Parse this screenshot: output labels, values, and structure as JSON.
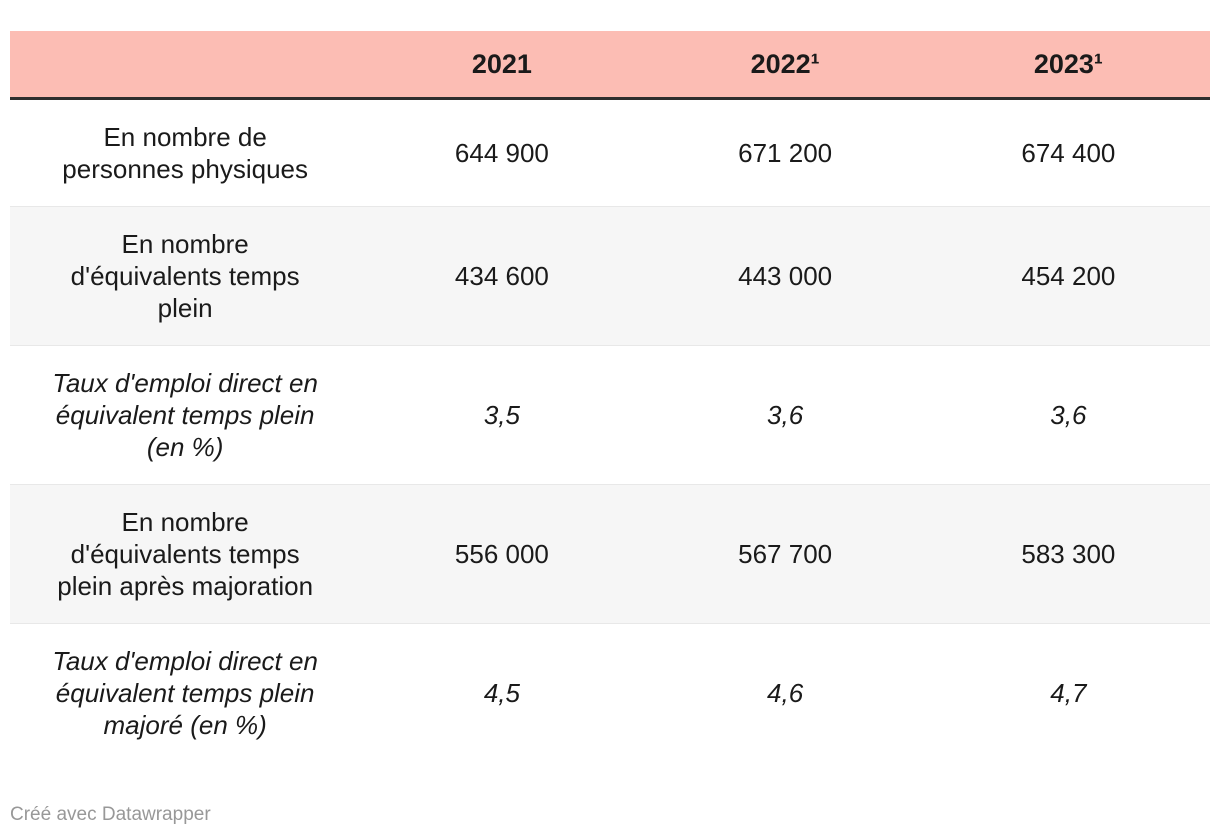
{
  "chart_data": {
    "type": "table",
    "columns": [
      "",
      "2021",
      "2022¹",
      "2023¹"
    ],
    "rows": [
      {
        "label": "En nombre de personnes physiques",
        "values": [
          "644 900",
          "671 200",
          "674 400"
        ]
      },
      {
        "label": "En nombre d'équivalents temps plein",
        "values": [
          "434 600",
          "443 000",
          "454 200"
        ]
      },
      {
        "label": "Taux d'emploi direct en équivalent temps plein (en %)",
        "values": [
          "3,5",
          "3,6",
          "3,6"
        ]
      },
      {
        "label": "En nombre d'équivalents temps plein après majoration",
        "values": [
          "556 000",
          "567 700",
          "583 300"
        ]
      },
      {
        "label": "Taux d'emploi direct en équivalent temps plein majoré (en %)",
        "values": [
          "4,5",
          "4,6",
          "4,7"
        ]
      }
    ]
  },
  "table": {
    "header": {
      "label": "",
      "columns": [
        "2021",
        "2022¹",
        "2023¹"
      ]
    },
    "rows": [
      {
        "label_lines": [
          "En nombre de",
          "personnes physiques"
        ],
        "values": [
          "644 900",
          "671 200",
          "674 400"
        ]
      },
      {
        "label_lines": [
          "En nombre",
          "d'équivalents temps",
          "plein"
        ],
        "values": [
          "434 600",
          "443 000",
          "454 200"
        ]
      },
      {
        "label_lines": [
          "Taux d'emploi direct en",
          "équivalent temps plein",
          "(en %)"
        ],
        "values": [
          "3,5",
          "3,6",
          "3,6"
        ]
      },
      {
        "label_lines": [
          "En nombre",
          "d'équivalents temps",
          "plein après majoration"
        ],
        "values": [
          "556 000",
          "567 700",
          "583 300"
        ]
      },
      {
        "label_lines": [
          "Taux d'emploi direct en",
          "équivalent temps plein",
          "majoré (en %)"
        ],
        "values": [
          "4,5",
          "4,6",
          "4,7"
        ]
      }
    ]
  },
  "footer": {
    "credit": "Créé avec Datawrapper"
  },
  "colors": {
    "header_bg": "#fcbdb4",
    "header_underline": "#2e2e2e",
    "alt_row_bg": "#f6f6f6",
    "row_divider": "#e8e8e8",
    "text": "#1a1a1a",
    "credit_text": "#989898"
  }
}
